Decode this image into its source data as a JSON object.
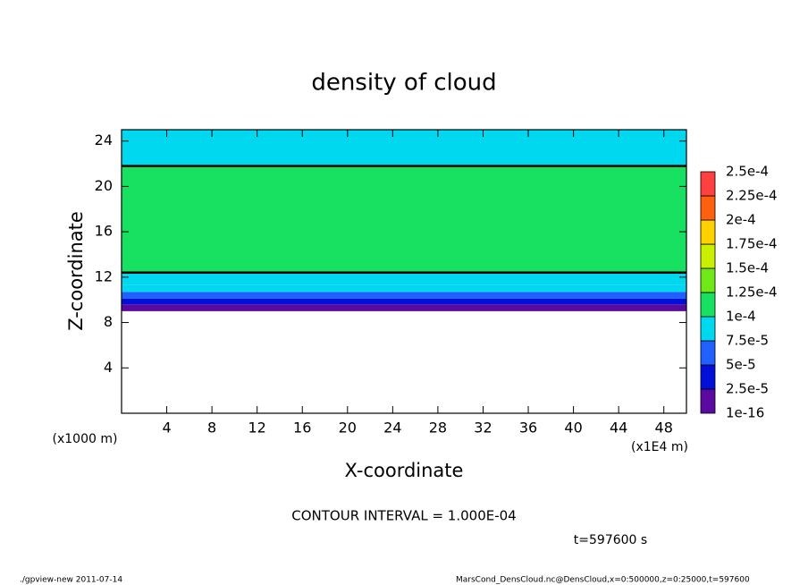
{
  "chart_data": {
    "type": "heatmap",
    "title": "density of cloud",
    "x_label": "X-coordinate",
    "y_label": "Z-coordinate",
    "x_unit_label": "(x1E4 m)",
    "y_unit_label": "(x1000 m)",
    "xlim": [
      0,
      50
    ],
    "xticks": [
      4,
      8,
      12,
      16,
      20,
      24,
      28,
      32,
      36,
      40,
      44,
      48
    ],
    "ylim": [
      0,
      25
    ],
    "yticks": [
      4,
      8,
      12,
      16,
      20,
      24
    ],
    "y_bins": [
      9,
      9.6,
      10.1,
      10.7,
      11.3,
      12.4,
      21.8,
      25
    ],
    "values": [
      5e-06,
      3e-05,
      6e-05,
      8e-05,
      9e-05,
      0.00011,
      9e-05
    ],
    "colorbar": {
      "levels": [
        {
          "value": 1e-16,
          "label": "1e-16"
        },
        {
          "value": 2.5e-05,
          "label": "2.5e-5"
        },
        {
          "value": 5e-05,
          "label": "5e-5"
        },
        {
          "value": 7.5e-05,
          "label": "7.5e-5"
        },
        {
          "value": 0.0001,
          "label": "1e-4"
        },
        {
          "value": 0.000125,
          "label": "1.25e-4"
        },
        {
          "value": 0.00015,
          "label": "1.5e-4"
        },
        {
          "value": 0.000175,
          "label": "1.75e-4"
        },
        {
          "value": 0.0002,
          "label": "2e-4"
        },
        {
          "value": 0.000225,
          "label": "2.25e-4"
        },
        {
          "value": 0.00025,
          "label": "2.5e-4"
        }
      ],
      "colors": [
        "#5a0aa0",
        "#0010d8",
        "#2060ff",
        "#00d8f0",
        "#18e060",
        "#70e818",
        "#c8f000",
        "#ffd000",
        "#ff6010",
        "#ff4040"
      ]
    },
    "annotation": "CONTOUR INTERVAL = 1.000E-04",
    "time_label": "t=597600 s",
    "footer_left": "./gpview-new  2011-07-14",
    "footer_right": "MarsCond_DensCloud.nc@DensCloud,x=0:500000,z=0:25000,t=597600"
  }
}
